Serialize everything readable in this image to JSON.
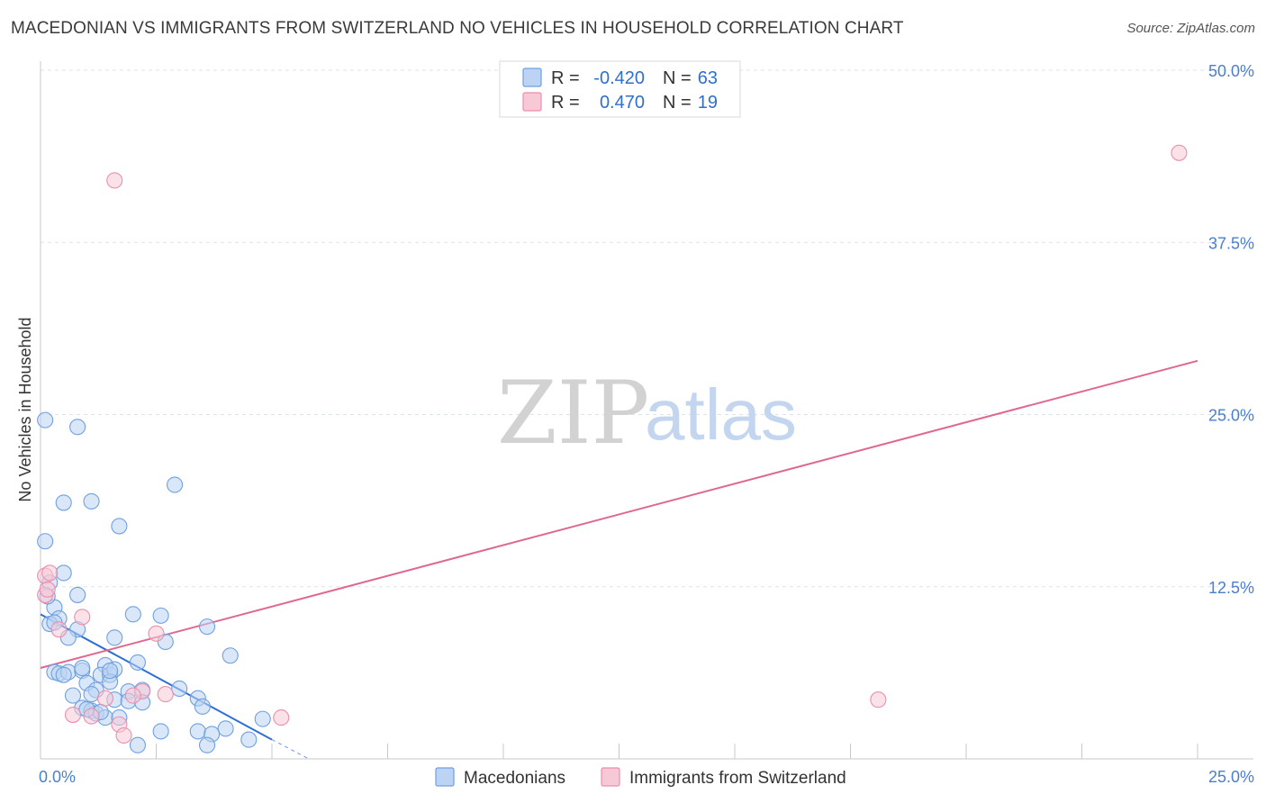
{
  "title": "MACEDONIAN VS IMMIGRANTS FROM SWITZERLAND NO VEHICLES IN HOUSEHOLD CORRELATION CHART",
  "source": "Source: ZipAtlas.com",
  "watermark": {
    "zip": "ZIP",
    "atlas": "atlas"
  },
  "colors": {
    "blue": "#6fa0e0",
    "blue_fill": "#bcd3f3",
    "blue_line": "#2e6fd6",
    "pink": "#eb8fac",
    "pink_fill": "#f7c8d6",
    "pink_line": "#e06890",
    "tick_text": "#4a7fd0",
    "grid": "#dde3ea"
  },
  "legend": {
    "rows": [
      {
        "r_label": "R =",
        "r_value": "-0.420",
        "n_label": "N =",
        "n_value": "63",
        "series": "blue"
      },
      {
        "r_label": "R =",
        "r_value": "0.470",
        "n_label": "N =",
        "n_value": "19",
        "series": "pink"
      }
    ]
  },
  "bottom_legend": [
    "Macedonians",
    "Immigrants from Switzerland"
  ],
  "chart_data": {
    "type": "scatter",
    "title": "MACEDONIAN VS IMMIGRANTS FROM SWITZERLAND NO VEHICLES IN HOUSEHOLD CORRELATION CHART",
    "xlabel": "",
    "ylabel": "No Vehicles in Household",
    "xlim": [
      0,
      25
    ],
    "ylim": [
      0,
      50
    ],
    "x_tick_labels": [
      "0.0%",
      "25.0%"
    ],
    "y_tick_labels": [
      "12.5%",
      "25.0%",
      "37.5%",
      "50.0%"
    ],
    "y_ticks": [
      12.5,
      25,
      37.5,
      50
    ],
    "grid": true,
    "series": [
      {
        "name": "Macedonians",
        "color": "blue",
        "trend": {
          "x": [
            0,
            5
          ],
          "y": [
            10.5,
            1.4
          ],
          "dashed_to": [
            5.8,
            0
          ]
        },
        "points": [
          [
            0.1,
            24.6
          ],
          [
            0.8,
            24.1
          ],
          [
            0.5,
            18.6
          ],
          [
            1.1,
            18.7
          ],
          [
            2.9,
            19.9
          ],
          [
            1.7,
            16.9
          ],
          [
            0.1,
            15.8
          ],
          [
            0.5,
            13.5
          ],
          [
            0.2,
            12.8
          ],
          [
            0.8,
            11.9
          ],
          [
            0.3,
            11.0
          ],
          [
            0.4,
            10.2
          ],
          [
            2.0,
            10.5
          ],
          [
            2.6,
            10.4
          ],
          [
            0.2,
            9.8
          ],
          [
            0.8,
            9.4
          ],
          [
            3.6,
            9.6
          ],
          [
            0.6,
            8.8
          ],
          [
            1.6,
            8.8
          ],
          [
            2.7,
            8.5
          ],
          [
            4.1,
            7.5
          ],
          [
            2.1,
            7.0
          ],
          [
            1.4,
            6.8
          ],
          [
            0.3,
            6.3
          ],
          [
            0.4,
            6.2
          ],
          [
            0.6,
            6.3
          ],
          [
            0.9,
            6.4
          ],
          [
            0.5,
            6.1
          ],
          [
            0.9,
            6.6
          ],
          [
            1.3,
            6.1
          ],
          [
            1.5,
            6.1
          ],
          [
            1.6,
            6.5
          ],
          [
            1.5,
            5.6
          ],
          [
            1.0,
            5.5
          ],
          [
            1.2,
            5.0
          ],
          [
            1.9,
            4.9
          ],
          [
            2.2,
            5.0
          ],
          [
            3.0,
            5.1
          ],
          [
            0.7,
            4.6
          ],
          [
            1.1,
            4.7
          ],
          [
            1.6,
            4.3
          ],
          [
            1.9,
            4.2
          ],
          [
            2.2,
            4.1
          ],
          [
            3.4,
            4.4
          ],
          [
            3.5,
            3.8
          ],
          [
            0.9,
            3.7
          ],
          [
            1.1,
            3.5
          ],
          [
            1.2,
            3.3
          ],
          [
            1.4,
            3.0
          ],
          [
            1.7,
            3.0
          ],
          [
            1.3,
            3.4
          ],
          [
            4.8,
            2.9
          ],
          [
            4.0,
            2.2
          ],
          [
            2.6,
            2.0
          ],
          [
            3.4,
            2.0
          ],
          [
            3.7,
            1.8
          ],
          [
            4.5,
            1.4
          ],
          [
            2.1,
            1.0
          ],
          [
            3.6,
            1.0
          ],
          [
            0.3,
            9.9
          ],
          [
            0.15,
            11.8
          ],
          [
            1.0,
            3.6
          ],
          [
            1.5,
            6.4
          ]
        ]
      },
      {
        "name": "Immigrants from Switzerland",
        "color": "pink",
        "trend": {
          "x": [
            0,
            25
          ],
          "y": [
            6.6,
            28.9
          ]
        },
        "points": [
          [
            24.6,
            44.0
          ],
          [
            1.6,
            42.0
          ],
          [
            0.1,
            13.3
          ],
          [
            0.2,
            13.5
          ],
          [
            0.1,
            11.9
          ],
          [
            0.9,
            10.3
          ],
          [
            2.5,
            9.1
          ],
          [
            0.4,
            9.4
          ],
          [
            2.7,
            4.7
          ],
          [
            2.2,
            4.9
          ],
          [
            2.0,
            4.6
          ],
          [
            1.4,
            4.4
          ],
          [
            18.1,
            4.3
          ],
          [
            0.7,
            3.2
          ],
          [
            1.1,
            3.1
          ],
          [
            5.2,
            3.0
          ],
          [
            1.7,
            2.5
          ],
          [
            1.8,
            1.7
          ],
          [
            0.15,
            12.3
          ]
        ]
      }
    ]
  }
}
